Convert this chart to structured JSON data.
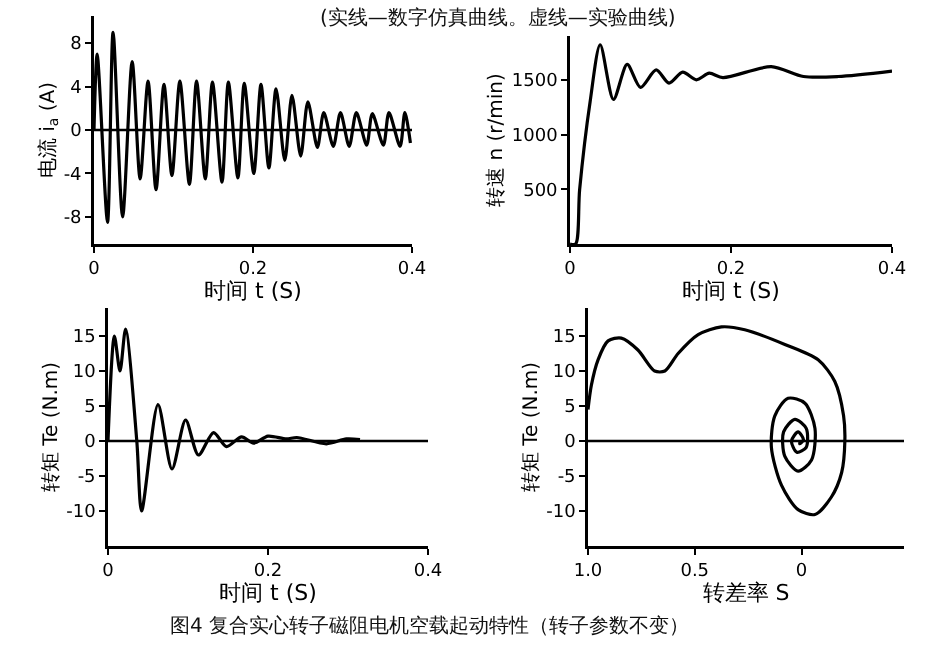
{
  "chart_data": [
    {
      "type": "line",
      "xlabel": "时间 t (S)",
      "ylabel": "电流 i$_{a}$ (A)",
      "xlim": [
        0,
        0.4
      ],
      "xticks": [
        0,
        0.2,
        0.4
      ],
      "ylim": [
        -10.5,
        10.5
      ],
      "yticks": [
        -8,
        -4,
        0,
        4,
        8
      ],
      "ref_lines": [
        {
          "axis": "y",
          "value": 0,
          "color": "#000000"
        }
      ],
      "series": [
        {
          "color": "#000000",
          "x": [
            0,
            0.004,
            0.017,
            0.024,
            0.036,
            0.048,
            0.058,
            0.068,
            0.078,
            0.088,
            0.098,
            0.108,
            0.12,
            0.129,
            0.14,
            0.149,
            0.161,
            0.169,
            0.181,
            0.189,
            0.201,
            0.21,
            0.22,
            0.229,
            0.24,
            0.249,
            0.26,
            0.269,
            0.281,
            0.289,
            0.301,
            0.31,
            0.321,
            0.33,
            0.343,
            0.35,
            0.364,
            0.371,
            0.385,
            0.391,
            0.398
          ],
          "values": [
            0,
            7,
            -8.5,
            9,
            -8,
            6.3,
            -4.5,
            4.5,
            -5.5,
            4.2,
            -4.2,
            4.5,
            -5,
            4.5,
            -4.5,
            4.4,
            -4.8,
            4.4,
            -4.4,
            4.3,
            -4,
            4.2,
            -3.5,
            3.8,
            -2.8,
            3.2,
            -2.4,
            2.6,
            -1.6,
            1.6,
            -1.5,
            1.6,
            -1.5,
            1.6,
            -1.4,
            1.5,
            -1.4,
            1.6,
            -1.5,
            1.6,
            -1.2
          ]
        }
      ]
    },
    {
      "type": "line",
      "xlabel": "时间 t (S)",
      "ylabel": "转速 n (r/min)",
      "xlim": [
        0,
        0.4
      ],
      "xticks": [
        0,
        0.2,
        0.4
      ],
      "ylim": [
        0,
        1900
      ],
      "yticks": [
        500,
        1000,
        1500
      ],
      "series": [
        {
          "color": "#000000",
          "x": [
            0,
            0.007,
            0.012,
            0.025,
            0.0375,
            0.054,
            0.071,
            0.0875,
            0.107,
            0.123,
            0.14,
            0.157,
            0.173,
            0.19,
            0.25,
            0.29,
            0.333,
            0.4
          ],
          "values": [
            0,
            0,
            500,
            1300,
            1820,
            1320,
            1640,
            1430,
            1590,
            1470,
            1570,
            1500,
            1560,
            1520,
            1620,
            1530,
            1530,
            1580
          ]
        }
      ]
    },
    {
      "type": "line",
      "xlabel": "时间 t (S)",
      "ylabel": "转矩 Te (N.m)",
      "xlim": [
        0,
        0.4
      ],
      "xticks": [
        0,
        0.2,
        0.4
      ],
      "ylim": [
        -15,
        19
      ],
      "yticks": [
        -10,
        -5,
        0,
        5,
        10,
        15
      ],
      "ref_lines": [
        {
          "axis": "y",
          "value": 0,
          "color": "#000000"
        }
      ],
      "series": [
        {
          "color": "#000000",
          "x": [
            0,
            0.008,
            0.015,
            0.022,
            0.036,
            0.042,
            0.0625,
            0.08,
            0.097,
            0.113,
            0.132,
            0.148,
            0.167,
            0.182,
            0.2,
            0.223,
            0.236,
            0.273,
            0.298,
            0.315
          ],
          "values": [
            0,
            15,
            10,
            16,
            0,
            -10,
            5.2,
            -4,
            3,
            -2,
            1.2,
            -0.8,
            0.6,
            -0.3,
            0.7,
            0.3,
            0.5,
            -0.4,
            0.3,
            0.2
          ]
        }
      ]
    },
    {
      "type": "line",
      "xlabel": "转差率 S",
      "ylabel": "转矩 Te (N.m)",
      "xlim": [
        1,
        -0.48
      ],
      "xticks": [
        {
          "value": 1,
          "label": "1.0"
        },
        0.5,
        0
      ],
      "ylim": [
        -15,
        19
      ],
      "yticks": [
        -10,
        -5,
        0,
        5,
        10,
        15
      ],
      "ref_lines": [
        {
          "axis": "y",
          "value": 0,
          "color": "#000000"
        }
      ],
      "series": [
        {
          "color": "#000000",
          "x": [
            1,
            0.984,
            0.953,
            0.906,
            0.844,
            0.766,
            0.688,
            0.64,
            0.578,
            0.484,
            0.375,
            0.266,
            0.078,
            -0.078,
            -0.156,
            -0.197,
            -0.203,
            -0.188,
            -0.14,
            -0.063,
            0.016,
            0.094,
            0.141,
            0.125,
            0.063,
            -0.016,
            -0.063,
            -0.047,
            0.016,
            0.078,
            0.084,
            0.031,
            -0.022,
            -0.022,
            0.022,
            0.047,
            0.016,
            -0.009,
            0.009,
            0.006
          ],
          "values": [
            4.5,
            8,
            11.6,
            14.3,
            14.7,
            13,
            10,
            10,
            12.5,
            15.2,
            16.3,
            15.9,
            13.8,
            11.6,
            8.5,
            3.6,
            0,
            -4.5,
            -8,
            -10.5,
            -9.8,
            -6.3,
            -0.9,
            3.6,
            6.1,
            5.4,
            1.8,
            -2.7,
            -4.3,
            -2.2,
            1.3,
            3.1,
            1.8,
            -0.9,
            -1.6,
            0,
            1.3,
            0.2,
            -0.4,
            0
          ]
        }
      ]
    },
    {
      "type": "other",
      "annotations": [
        "(实线—数字仿真曲线。虚线—实验曲线)",
        "图4  复合实心转子磁阻电机空载起动特性（转子参数不变）"
      ]
    }
  ]
}
